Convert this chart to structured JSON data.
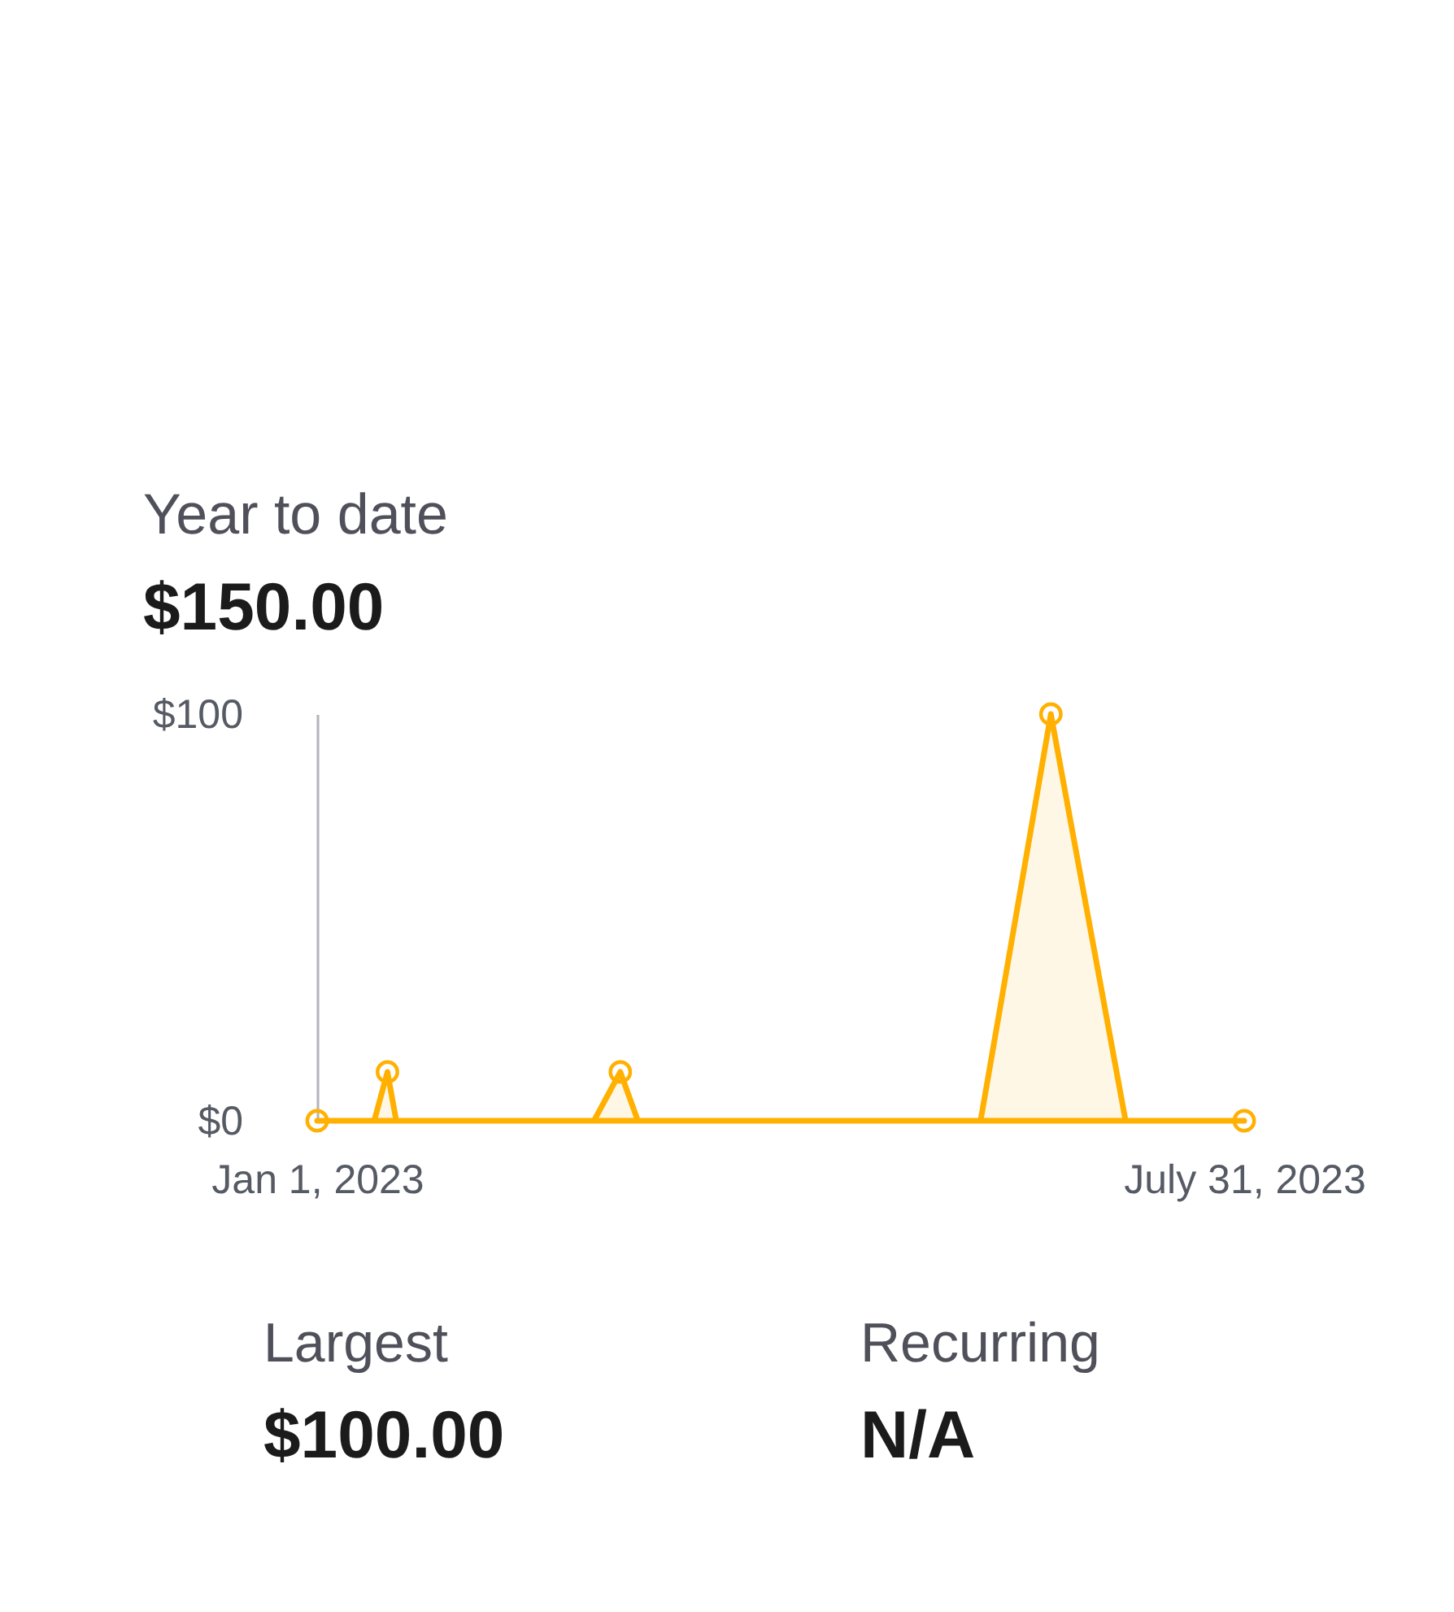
{
  "chart_data": {
    "type": "area",
    "title": "Year to date",
    "subtitle": "$150.00",
    "series": [
      {
        "color": "#ffb000",
        "marker": "none",
        "x": [
          "2023-01-01",
          "2023-01-14",
          "2023-01-17",
          "2023-01-19",
          "2023-03-05",
          "2023-03-11",
          "2023-03-15",
          "2023-06-01",
          "2023-06-17",
          "2023-07-04",
          "2023-07-31"
        ],
        "values": [
          0,
          0,
          12,
          0,
          0,
          12,
          0,
          0,
          100,
          0,
          0
        ]
      },
      {
        "type": "scatter",
        "color": "#ffb000",
        "marker": "circle",
        "x": [
          "2023-01-01",
          "2023-01-17",
          "2023-03-11",
          "2023-06-17",
          "2023-07-31"
        ],
        "values": [
          0,
          12,
          12,
          100,
          0
        ]
      }
    ],
    "xlim": [
      "2023-01-01",
      "2023-07-31"
    ],
    "xticks": [
      {
        "value": "2023-01-01",
        "label": "Jan 1, 2023"
      },
      {
        "value": "2023-07-31",
        "label": "July 31, 2023"
      }
    ],
    "ylim": [
      0,
      100
    ],
    "yticks": [
      {
        "value": 0,
        "label": "$0"
      },
      {
        "value": 100,
        "label": "$100"
      }
    ],
    "annotations": [
      "Largest",
      "$100.00",
      "Recurring",
      "N/A"
    ]
  }
}
